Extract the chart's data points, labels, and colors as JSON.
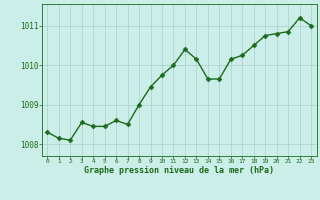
{
  "x": [
    0,
    1,
    2,
    3,
    4,
    5,
    6,
    7,
    8,
    9,
    10,
    11,
    12,
    13,
    14,
    15,
    16,
    17,
    18,
    19,
    20,
    21,
    22,
    23
  ],
  "y": [
    1008.3,
    1008.15,
    1008.1,
    1008.55,
    1008.45,
    1008.45,
    1008.6,
    1008.5,
    1009.0,
    1009.45,
    1009.75,
    1010.0,
    1010.4,
    1010.15,
    1009.65,
    1009.65,
    1010.15,
    1010.25,
    1010.5,
    1010.75,
    1010.8,
    1010.85,
    1011.2,
    1011.0
  ],
  "line_color": "#1a6b1a",
  "marker_color": "#1a6b1a",
  "bg_color": "#cceee8",
  "grid_color": "#aacccc",
  "xlabel": "Graphe pression niveau de la mer (hPa)",
  "xlabel_color": "#1a6b1a",
  "tick_color": "#1a6b1a",
  "ylim": [
    1007.7,
    1011.55
  ],
  "yticks": [
    1008,
    1009,
    1010,
    1011
  ],
  "xticks": [
    0,
    1,
    2,
    3,
    4,
    5,
    6,
    7,
    8,
    9,
    10,
    11,
    12,
    13,
    14,
    15,
    16,
    17,
    18,
    19,
    20,
    21,
    22,
    23
  ],
  "marker_size": 2.5,
  "line_width": 1.0
}
